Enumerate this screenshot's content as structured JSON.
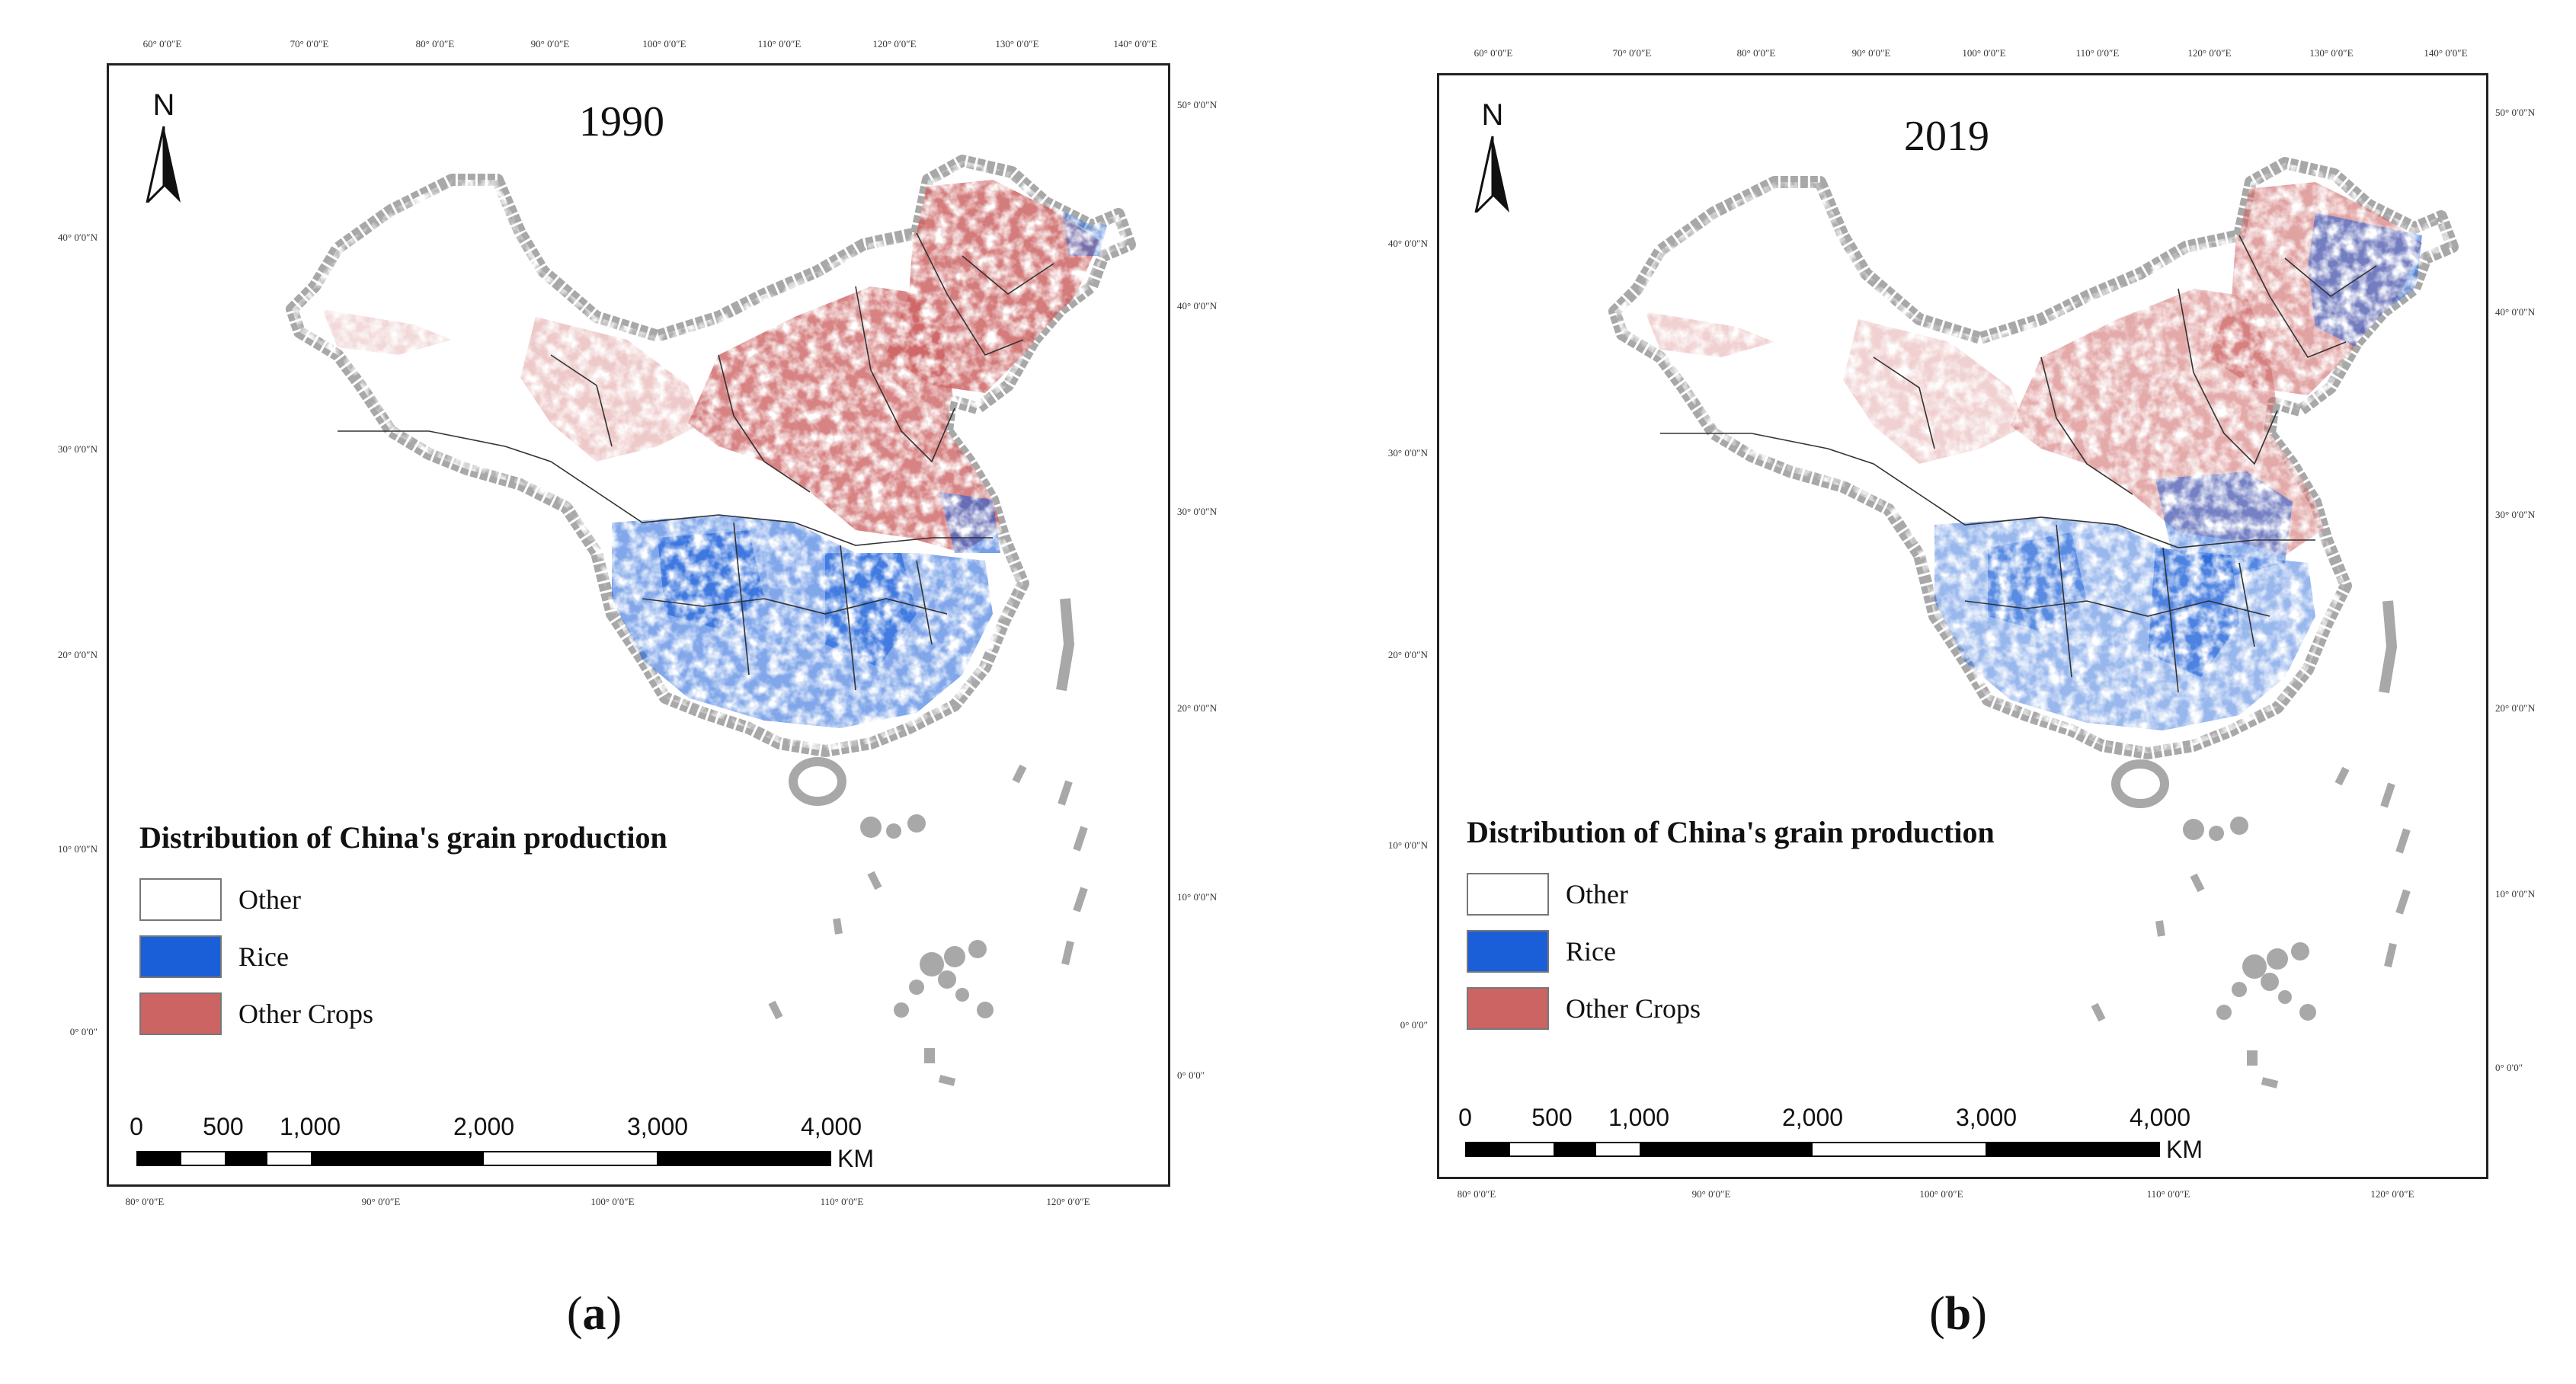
{
  "figure": {
    "panels": [
      {
        "id": "a",
        "caption_letter": "a",
        "year": "1990",
        "legend_title": "Distribution of China's grain production",
        "legend_items": [
          {
            "label": "Other",
            "color": "#ffffff"
          },
          {
            "label": "Rice",
            "color": "#1a5fd8"
          },
          {
            "label": "Other Crops",
            "color": "#cd6464"
          }
        ],
        "scale_labels": [
          "0",
          "500",
          "1,000",
          "2,000",
          "3,000",
          "4,000"
        ],
        "scale_unit": "KM",
        "top_ticks": [
          "60° 0′0″E",
          "70° 0′0″E",
          "80° 0′0″E",
          "90° 0′0″E",
          "100° 0′0″E",
          "110° 0′0″E",
          "120° 0′0″E",
          "130° 0′0″E",
          "140° 0′0″E"
        ],
        "bottom_ticks": [
          "80° 0′0″E",
          "90° 0′0″E",
          "100° 0′0″E",
          "110° 0′0″E",
          "120° 0′0″E"
        ],
        "left_ticks": [
          "40° 0′0″N",
          "30° 0′0″N",
          "20° 0′0″N",
          "10° 0′0″N",
          "0° 0′0″"
        ],
        "right_ticks": [
          "50° 0′0″N",
          "40° 0′0″N",
          "30° 0′0″N",
          "20° 0′0″N",
          "10° 0′0″N",
          "0° 0′0″"
        ]
      },
      {
        "id": "b",
        "caption_letter": "b",
        "year": "2019",
        "legend_title": "Distribution of China's grain production",
        "legend_items": [
          {
            "label": "Other",
            "color": "#ffffff"
          },
          {
            "label": "Rice",
            "color": "#1a5fd8"
          },
          {
            "label": "Other Crops",
            "color": "#cd6464"
          }
        ],
        "scale_labels": [
          "0",
          "500",
          "1,000",
          "2,000",
          "3,000",
          "4,000"
        ],
        "scale_unit": "KM",
        "top_ticks": [
          "60° 0′0″E",
          "70° 0′0″E",
          "80° 0′0″E",
          "90° 0′0″E",
          "100° 0′0″E",
          "110° 0′0″E",
          "120° 0′0″E",
          "130° 0′0″E",
          "140° 0′0″E"
        ],
        "bottom_ticks": [
          "80° 0′0″E",
          "90° 0′0″E",
          "100° 0′0″E",
          "110° 0′0″E",
          "120° 0′0″E"
        ],
        "left_ticks": [
          "40° 0′0″N",
          "30° 0′0″N",
          "20° 0′0″N",
          "10° 0′0″N",
          "0° 0′0″"
        ],
        "right_ticks": [
          "50° 0′0″N",
          "40° 0′0″N",
          "30° 0′0″N",
          "20° 0′0″N",
          "10° 0′0″N",
          "0° 0′0″"
        ]
      }
    ]
  }
}
